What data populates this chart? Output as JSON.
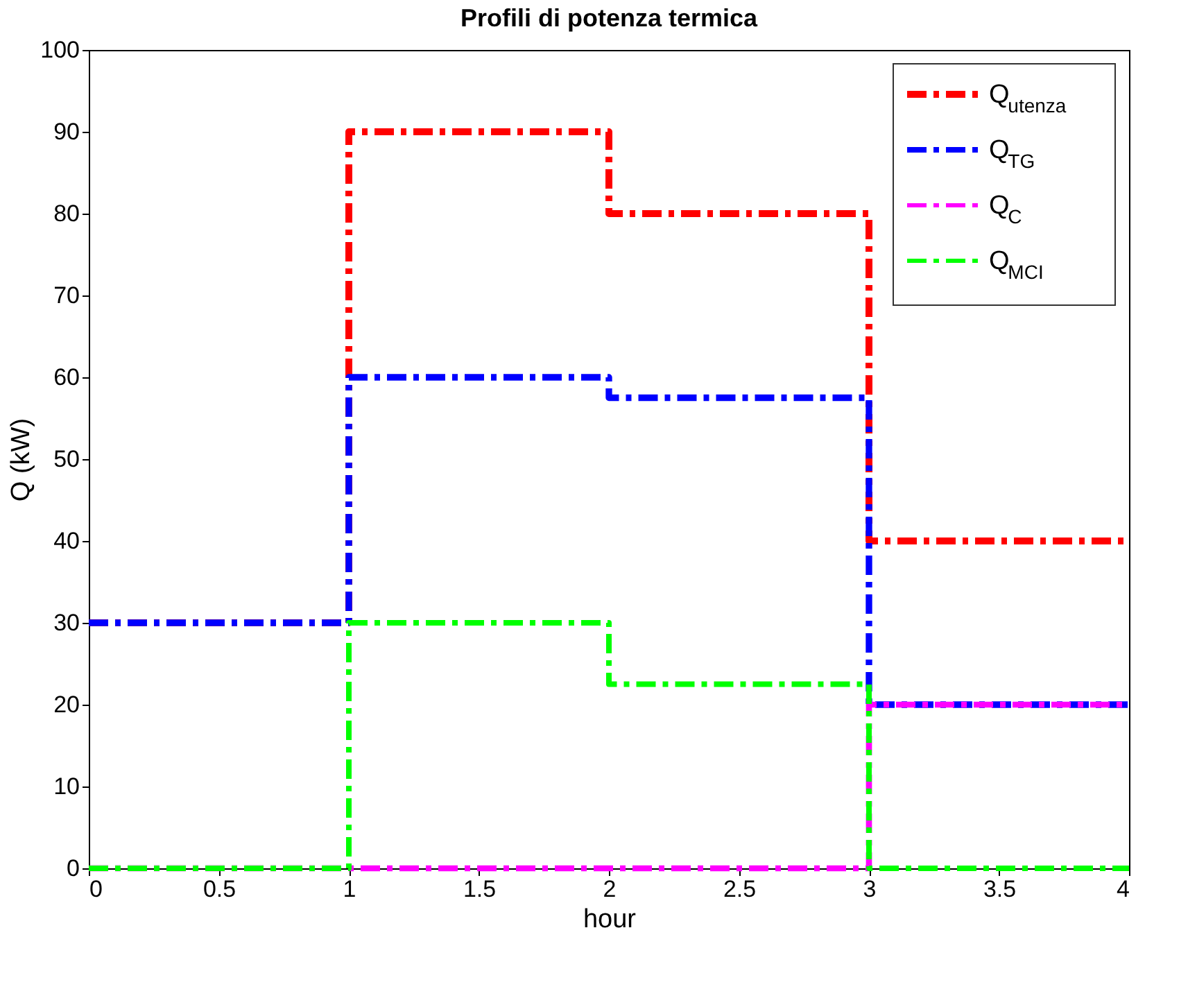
{
  "chart_data": {
    "type": "step",
    "title": "Profili di potenza termica",
    "xlabel": "hour",
    "ylabel": "Q (kW)",
    "x": [
      0,
      1,
      2,
      3,
      4
    ],
    "series": [
      {
        "name": "Q$_{utenza}$",
        "color": "#ff0000",
        "values": [
          30,
          90,
          80,
          40,
          40
        ]
      },
      {
        "name": "Q$_{TG}$",
        "color": "#0000ff",
        "values": [
          30,
          60,
          57.5,
          20,
          20
        ]
      },
      {
        "name": "Q$_{C}$",
        "color": "#ff00ff",
        "values": [
          0,
          0,
          0,
          20,
          20
        ]
      },
      {
        "name": "Q$_{MCI}$",
        "color": "#00ff00",
        "values": [
          0,
          30,
          22.5,
          0,
          0
        ]
      }
    ],
    "xlim": [
      0,
      4
    ],
    "xticks": [
      0,
      0.5,
      1,
      1.5,
      2,
      2.5,
      3,
      3.5,
      4
    ],
    "ylim": [
      0,
      100
    ],
    "yticks": [
      0,
      10,
      20,
      30,
      40,
      50,
      60,
      70,
      80,
      90,
      100
    ],
    "grid": false,
    "legend": "top right",
    "line_style": "dashed",
    "marker": "none"
  }
}
